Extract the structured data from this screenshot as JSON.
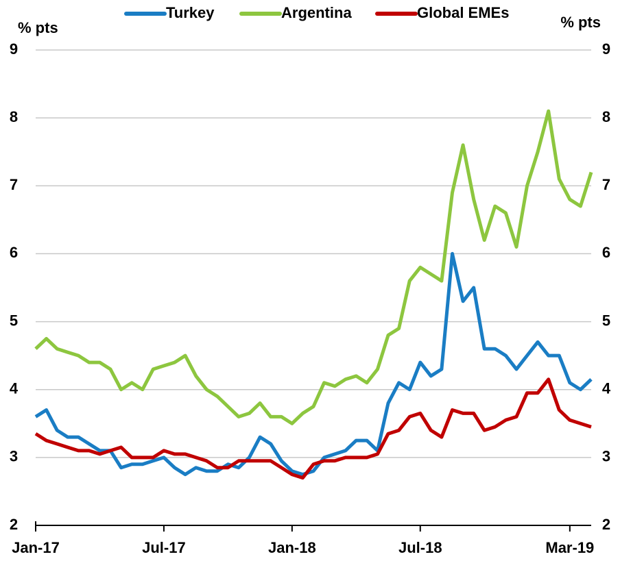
{
  "chart_data": {
    "type": "line",
    "legend": "top",
    "y_label": "% pts",
    "y2_label": "% pts",
    "categories": [
      "Jan-17",
      null,
      null,
      null,
      null,
      null,
      null,
      null,
      null,
      null,
      null,
      null,
      "Jul-17",
      null,
      null,
      null,
      null,
      null,
      null,
      null,
      null,
      null,
      null,
      null,
      "Jan-18",
      null,
      null,
      null,
      null,
      null,
      null,
      null,
      null,
      null,
      null,
      null,
      "Jul-18",
      null,
      null,
      null,
      null,
      null,
      null,
      null,
      null,
      null,
      null,
      null,
      null,
      null,
      "Mar-19",
      null,
      null
    ],
    "series": [
      {
        "name": "Turkey",
        "color": "#1a7dc4",
        "values": [
          3.6,
          3.7,
          3.4,
          3.3,
          3.3,
          3.2,
          3.1,
          3.1,
          2.85,
          2.9,
          2.9,
          2.95,
          3.0,
          2.85,
          2.75,
          2.85,
          2.8,
          2.8,
          2.9,
          2.85,
          3.0,
          3.3,
          3.2,
          2.95,
          2.8,
          2.75,
          2.8,
          3.0,
          3.05,
          3.1,
          3.25,
          3.25,
          3.1,
          3.8,
          4.1,
          4.0,
          4.4,
          4.2,
          4.3,
          6.0,
          5.3,
          5.5,
          4.6,
          4.6,
          4.5,
          4.3,
          4.5,
          4.7,
          4.5,
          4.5,
          4.1,
          4.0,
          4.15
        ]
      },
      {
        "name": "Argentina",
        "color": "#8dc63f",
        "values": [
          4.6,
          4.75,
          4.6,
          4.55,
          4.5,
          4.4,
          4.4,
          4.3,
          4.0,
          4.1,
          4.0,
          4.3,
          4.35,
          4.4,
          4.5,
          4.2,
          4.0,
          3.9,
          3.75,
          3.6,
          3.65,
          3.8,
          3.6,
          3.6,
          3.5,
          3.65,
          3.75,
          4.1,
          4.05,
          4.15,
          4.2,
          4.1,
          4.3,
          4.8,
          4.9,
          5.6,
          5.8,
          5.7,
          5.6,
          6.9,
          7.6,
          6.8,
          6.2,
          6.7,
          6.6,
          6.1,
          7.0,
          7.5,
          8.1,
          7.1,
          6.8,
          6.7,
          7.2
        ]
      },
      {
        "name": "Global EMEs",
        "color": "#c00000",
        "values": [
          3.35,
          3.25,
          3.2,
          3.15,
          3.1,
          3.1,
          3.05,
          3.1,
          3.15,
          3.0,
          3.0,
          3.0,
          3.1,
          3.05,
          3.05,
          3.0,
          2.95,
          2.85,
          2.85,
          2.95,
          2.95,
          2.95,
          2.95,
          2.85,
          2.75,
          2.7,
          2.9,
          2.95,
          2.95,
          3.0,
          3.0,
          3.0,
          3.05,
          3.35,
          3.4,
          3.6,
          3.65,
          3.4,
          3.3,
          3.7,
          3.65,
          3.65,
          3.4,
          3.45,
          3.55,
          3.6,
          3.95,
          3.95,
          4.15,
          3.7,
          3.55,
          3.5,
          3.45
        ]
      }
    ],
    "ylim": [
      2,
      9
    ],
    "yticks": [
      2,
      3,
      4,
      5,
      6,
      7,
      8,
      9
    ],
    "y2lim": [
      2,
      9
    ],
    "y2ticks": [
      2,
      3,
      4,
      5,
      6,
      7,
      8,
      9
    ],
    "grid": true
  }
}
